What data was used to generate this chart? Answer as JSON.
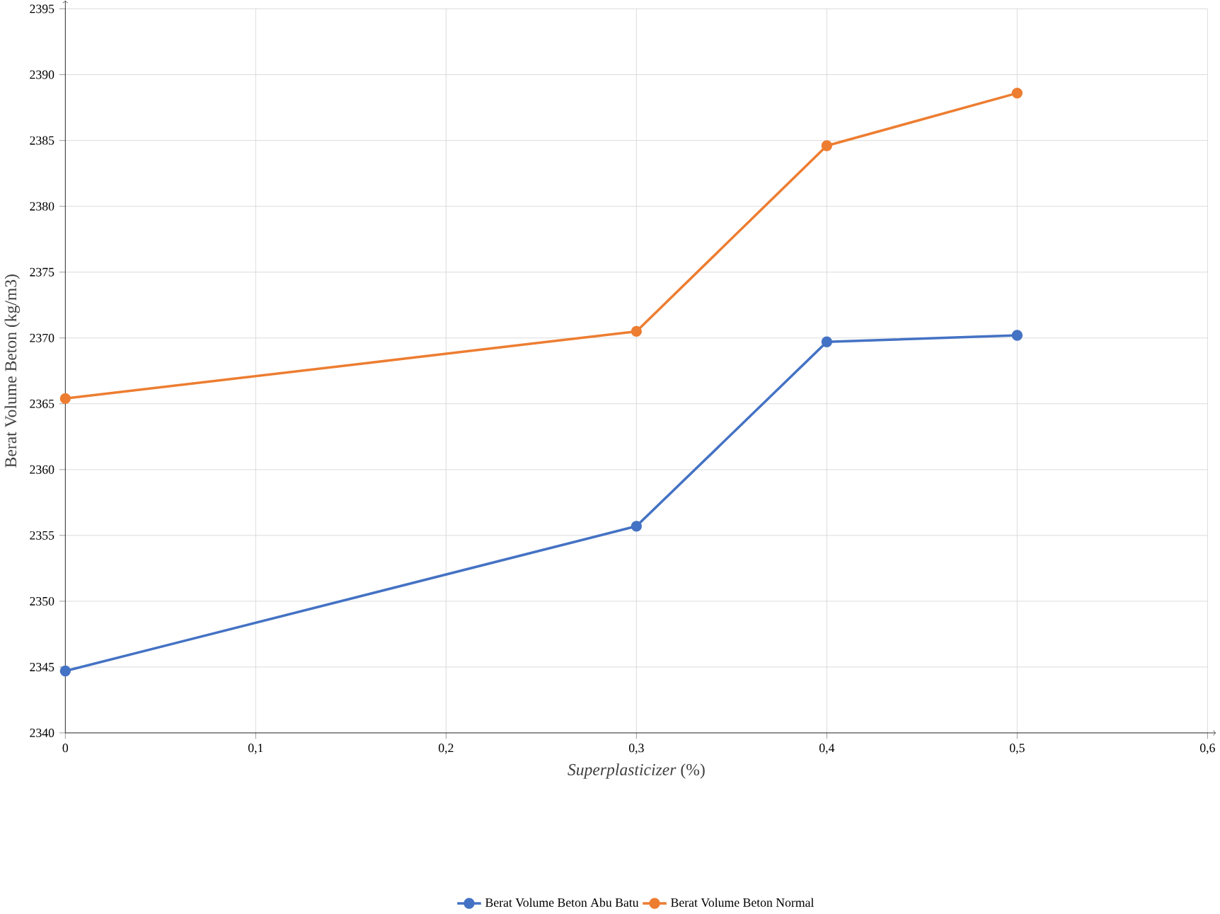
{
  "chart_data": {
    "type": "line",
    "xlabel": "*Superplasticizer* (%)",
    "ylabel": "Berat Volume  Beton (kg/m3)",
    "x": [
      0,
      0.3,
      0.4,
      0.5
    ],
    "series": [
      {
        "name": "Berat Volume Beton Abu Batu",
        "color": "#4472c4",
        "values": [
          2344.7,
          2355.7,
          2369.7,
          2370.2
        ]
      },
      {
        "name": "Berat Volume Beton Normal",
        "color": "#ed7d31",
        "values": [
          2365.4,
          2370.5,
          2384.6,
          2388.6
        ]
      }
    ],
    "xlim": [
      0,
      0.6
    ],
    "xticks": [
      0,
      {
        "value": 0.1,
        "label": "0,1"
      },
      {
        "value": 0.2,
        "label": "0,2"
      },
      {
        "value": 0.3,
        "label": "0,3"
      },
      {
        "value": 0.4,
        "label": "0,4"
      },
      {
        "value": 0.5,
        "label": "0,5"
      },
      {
        "value": 0.6,
        "label": "0,6"
      }
    ],
    "ylim": [
      2340,
      2395
    ],
    "yticks": [
      2340,
      2345,
      2350,
      2355,
      2360,
      2365,
      2370,
      2375,
      2380,
      2385,
      2390,
      2395
    ],
    "grid": true,
    "legend": "bottom",
    "marker": "circle",
    "line_style": "solid"
  }
}
